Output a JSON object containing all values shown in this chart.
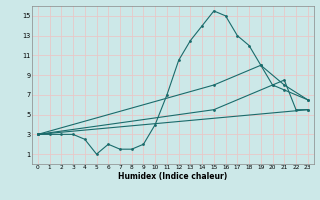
{
  "xlabel": "Humidex (Indice chaleur)",
  "bg_color": "#cce8e8",
  "grid_color": "#e8c8c8",
  "line_color": "#1a6b6b",
  "xlim": [
    -0.5,
    23.5
  ],
  "ylim": [
    0,
    16
  ],
  "xticks": [
    0,
    1,
    2,
    3,
    4,
    5,
    6,
    7,
    8,
    9,
    10,
    11,
    12,
    13,
    14,
    15,
    16,
    17,
    18,
    19,
    20,
    21,
    22,
    23
  ],
  "yticks": [
    1,
    3,
    5,
    7,
    9,
    11,
    13,
    15
  ],
  "series": [
    {
      "x": [
        0,
        1,
        2,
        3,
        4,
        5,
        6,
        7,
        8,
        9,
        10,
        11,
        12,
        13,
        14,
        15,
        16,
        17,
        18,
        19,
        20,
        21,
        22,
        23
      ],
      "y": [
        3,
        3,
        3,
        3,
        2.5,
        1,
        2,
        1.5,
        1.5,
        2,
        4,
        7,
        10.5,
        12.5,
        14,
        15.5,
        15,
        13,
        12,
        10,
        8,
        8.5,
        5.5,
        5.5
      ]
    },
    {
      "x": [
        0,
        15,
        19,
        21,
        23
      ],
      "y": [
        3,
        8,
        10,
        8,
        6.5
      ]
    },
    {
      "x": [
        0,
        15,
        20,
        21,
        23
      ],
      "y": [
        3,
        5.5,
        8,
        7.5,
        6.5
      ]
    },
    {
      "x": [
        0,
        23
      ],
      "y": [
        3,
        5.5
      ]
    }
  ]
}
